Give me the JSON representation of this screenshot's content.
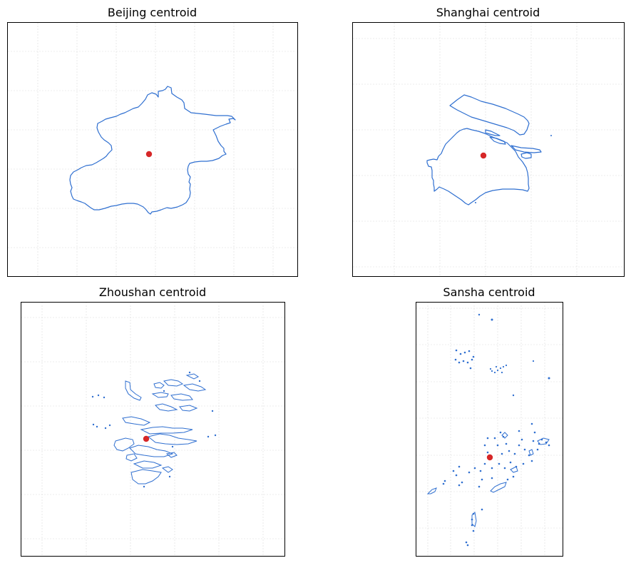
{
  "panels": [
    {
      "key": "beijing",
      "title": "Beijing centroid"
    },
    {
      "key": "shanghai",
      "title": "Shanghai centroid"
    },
    {
      "key": "zhoushan",
      "title": "Zhoushan centroid"
    },
    {
      "key": "sansha",
      "title": "Sansha centroid"
    }
  ],
  "colors": {
    "outline": "#2f6fd0",
    "centroid": "#d62728",
    "grid": "#d9d9d9"
  },
  "grid": true
}
